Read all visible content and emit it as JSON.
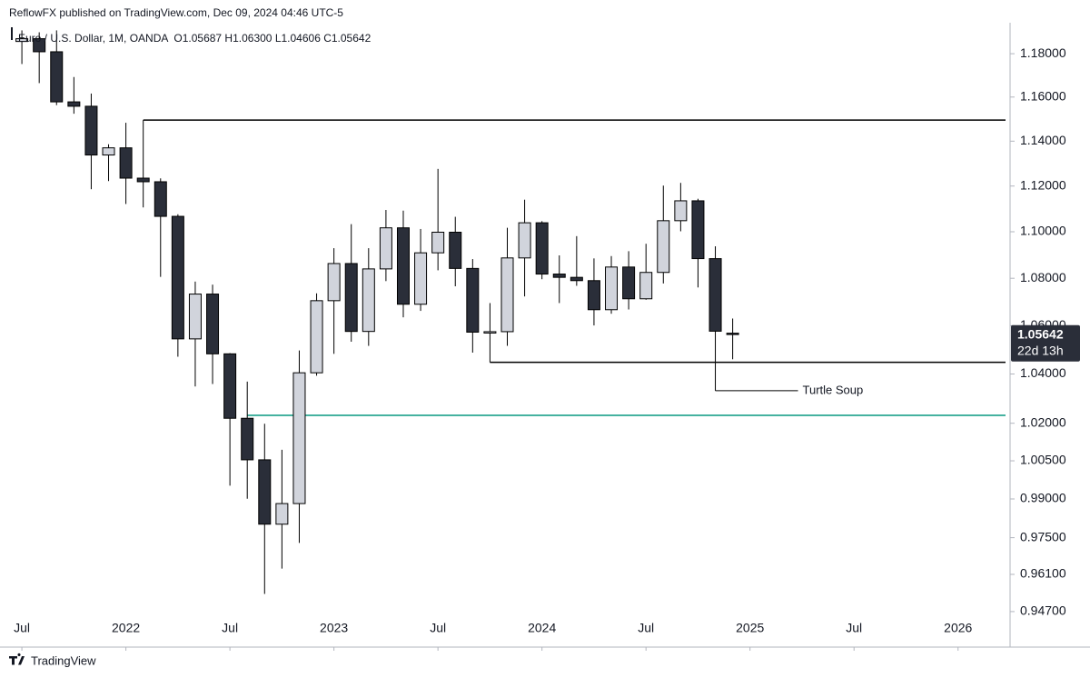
{
  "header": {
    "publisher": "ReflowFX published on TradingView.com, Dec 09, 2024 04:46 UTC-5"
  },
  "footer": {
    "brand": "TradingView"
  },
  "chart_data": {
    "type": "candlestick",
    "title": "Euro / U.S. Dollar, 1M, OANDA",
    "ohlc_label": "O1.05687 H1.06300 L1.04606 C1.05642",
    "countdown": "22d 13h",
    "log_scale": true,
    "up_color": "#d1d4dc",
    "down_color": "#2a2e39",
    "x": [
      "2021-07",
      "2021-08",
      "2021-09",
      "2021-10",
      "2021-11",
      "2021-12",
      "2022-01",
      "2022-02",
      "2022-03",
      "2022-04",
      "2022-05",
      "2022-06",
      "2022-07",
      "2022-08",
      "2022-09",
      "2022-10",
      "2022-11",
      "2022-12",
      "2023-01",
      "2023-02",
      "2023-03",
      "2023-04",
      "2023-05",
      "2023-06",
      "2023-07",
      "2023-08",
      "2023-09",
      "2023-10",
      "2023-11",
      "2023-12",
      "2024-01",
      "2024-02",
      "2024-03",
      "2024-04",
      "2024-05",
      "2024-06",
      "2024-07",
      "2024-08",
      "2024-09",
      "2024-10",
      "2024-11",
      "2024-12"
    ],
    "open": [
      1.1857,
      1.187,
      1.1809,
      1.1578,
      1.1558,
      1.1338,
      1.137,
      1.1235,
      1.1219,
      1.1067,
      1.0545,
      1.0733,
      1.0483,
      1.022,
      1.0054,
      0.9802,
      0.9882,
      1.0405,
      1.0705,
      1.0863,
      1.0576,
      1.084,
      1.1017,
      1.069,
      1.0909,
      1.0998,
      1.0842,
      1.0573,
      1.0575,
      1.0887,
      1.1039,
      1.0818,
      1.0804,
      1.079,
      1.0667,
      1.0848,
      1.0713,
      1.0825,
      1.1048,
      1.1135,
      1.0884,
      1.05687
    ],
    "high": [
      1.1909,
      1.19,
      1.1909,
      1.1692,
      1.1616,
      1.1386,
      1.1483,
      1.1495,
      1.1234,
      1.1076,
      1.0786,
      1.0773,
      1.0486,
      1.0369,
      1.0198,
      1.0094,
      1.0497,
      1.0736,
      1.0929,
      1.1033,
      1.0929,
      1.1095,
      1.1092,
      1.1012,
      1.1276,
      1.1065,
      1.0882,
      1.0695,
      1.1017,
      1.114,
      1.1046,
      1.0898,
      1.0981,
      1.0885,
      1.0895,
      1.0916,
      1.0948,
      1.1202,
      1.1214,
      1.1144,
      1.0937,
      1.063
    ],
    "low": [
      1.1752,
      1.1664,
      1.1563,
      1.1524,
      1.1186,
      1.1222,
      1.1121,
      1.1106,
      1.0806,
      1.0471,
      1.0349,
      1.0359,
      0.9952,
      0.9901,
      0.9536,
      0.9632,
      0.973,
      1.0393,
      1.0483,
      1.0533,
      1.0516,
      1.0788,
      1.0635,
      1.0662,
      1.0834,
      1.0766,
      1.0488,
      1.0448,
      1.0516,
      1.0723,
      1.0796,
      1.0695,
      1.0768,
      1.0601,
      1.065,
      1.0668,
      1.0709,
      1.0778,
      1.1002,
      1.0761,
      1.0332,
      1.04606
    ],
    "close": [
      1.187,
      1.1809,
      1.1578,
      1.1558,
      1.1338,
      1.137,
      1.1235,
      1.1219,
      1.1067,
      1.0545,
      1.0733,
      1.0483,
      1.022,
      1.0054,
      0.9802,
      0.9882,
      1.0405,
      1.0705,
      1.0863,
      1.0576,
      1.084,
      1.1017,
      1.069,
      1.0909,
      1.0998,
      1.0842,
      1.0573,
      1.0575,
      1.0887,
      1.1039,
      1.0818,
      1.0804,
      1.079,
      1.0667,
      1.0848,
      1.0713,
      1.0825,
      1.1048,
      1.1135,
      1.0884,
      1.0577,
      1.05642
    ],
    "xlim": [
      "2021-06",
      "2026-04"
    ],
    "xticks": [
      {
        "value": "2021-07",
        "label": "Jul"
      },
      {
        "value": "2022-01",
        "label": "2022"
      },
      {
        "value": "2022-07",
        "label": "Jul"
      },
      {
        "value": "2023-01",
        "label": "2023"
      },
      {
        "value": "2023-07",
        "label": "Jul"
      },
      {
        "value": "2024-01",
        "label": "2024"
      },
      {
        "value": "2024-07",
        "label": "Jul"
      },
      {
        "value": "2025-01",
        "label": "2025"
      },
      {
        "value": "2025-07",
        "label": "Jul"
      },
      {
        "value": "2026-01",
        "label": "2026"
      }
    ],
    "ylim": [
      0.9446,
      1.1945
    ],
    "yticks": [
      {
        "value": 1.18,
        "label": "1.18000"
      },
      {
        "value": 1.16,
        "label": "1.16000"
      },
      {
        "value": 1.14,
        "label": "1.14000"
      },
      {
        "value": 1.12,
        "label": "1.12000"
      },
      {
        "value": 1.1,
        "label": "1.10000"
      },
      {
        "value": 1.08,
        "label": "1.08000"
      },
      {
        "value": 1.06,
        "label": "1.06000"
      },
      {
        "value": 1.04,
        "label": "1.04000"
      },
      {
        "value": 1.02,
        "label": "1.02000"
      },
      {
        "value": 1.005,
        "label": "1.00500"
      },
      {
        "value": 0.99,
        "label": "0.99000"
      },
      {
        "value": 0.975,
        "label": "0.97500"
      },
      {
        "value": 0.961,
        "label": "0.96100"
      },
      {
        "value": 0.947,
        "label": "0.94700"
      }
    ],
    "levels": [
      {
        "value": 1.1495,
        "from": "2022-02",
        "color": "#000000"
      },
      {
        "value": 1.0448,
        "from": "2023-10",
        "color": "#000000"
      },
      {
        "value": 1.0232,
        "from": "2022-08",
        "color": "#089981"
      }
    ],
    "annotation": {
      "text": "Turtle Soup",
      "at": "2024-11"
    }
  }
}
